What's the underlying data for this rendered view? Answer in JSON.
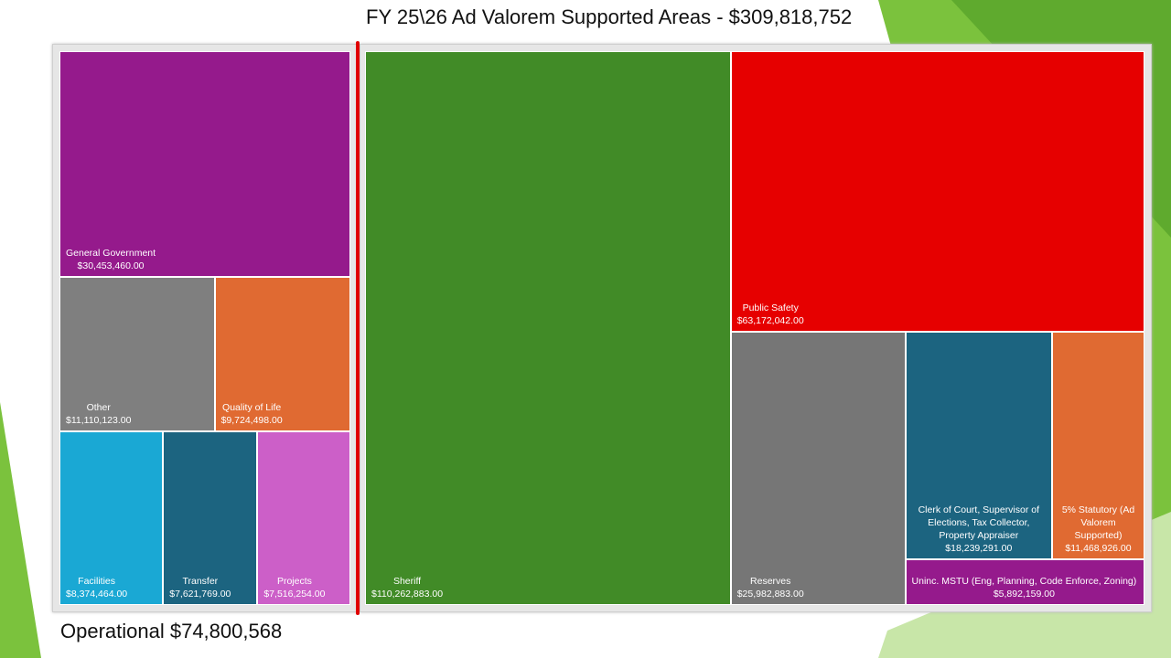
{
  "title": "FY 25\\26 Ad Valorem Supported Areas - $309,818,752",
  "chart_data": [
    {
      "type": "treemap",
      "title": "Operational $74,800,568",
      "categories": [
        "General Government",
        "Other",
        "Quality of Life",
        "Facilities",
        "Transfer",
        "Projects"
      ],
      "values": [
        30453460,
        11110123,
        9724498,
        8374464,
        7621769,
        7516254
      ],
      "value_labels": [
        "$30,453,460.00",
        "$11,110,123.00",
        "$9,724,498.00",
        "$8,374,464.00",
        "$7,621,769.00",
        "$7,516,254.00"
      ],
      "colors": [
        "#951a8c",
        "#7f7f7f",
        "#e06a32",
        "#1aa8d4",
        "#1c6480",
        "#cc5fc8"
      ]
    },
    {
      "type": "treemap",
      "categories": [
        "Sheriff",
        "Public Safety",
        "Reserves",
        "Clerk of Court, Supervisor of Elections, Tax Collector, Property Appraiser",
        "5% Statutory (Ad Valorem Supported)",
        "Uninc. MSTU (Eng, Planning, Code Enforce, Zoning)"
      ],
      "values": [
        110262883,
        63172042,
        25982883,
        18239291,
        11468926,
        5892159
      ],
      "value_labels": [
        "$110,262,883.00",
        "$63,172,042.00",
        "$25,982,883.00",
        "$18,239,291.00",
        "$11,468,926.00",
        "$5,892,159.00"
      ],
      "colors": [
        "#418b27",
        "#e60000",
        "#767676",
        "#1c6480",
        "#e06a32",
        "#951a8c"
      ]
    }
  ]
}
